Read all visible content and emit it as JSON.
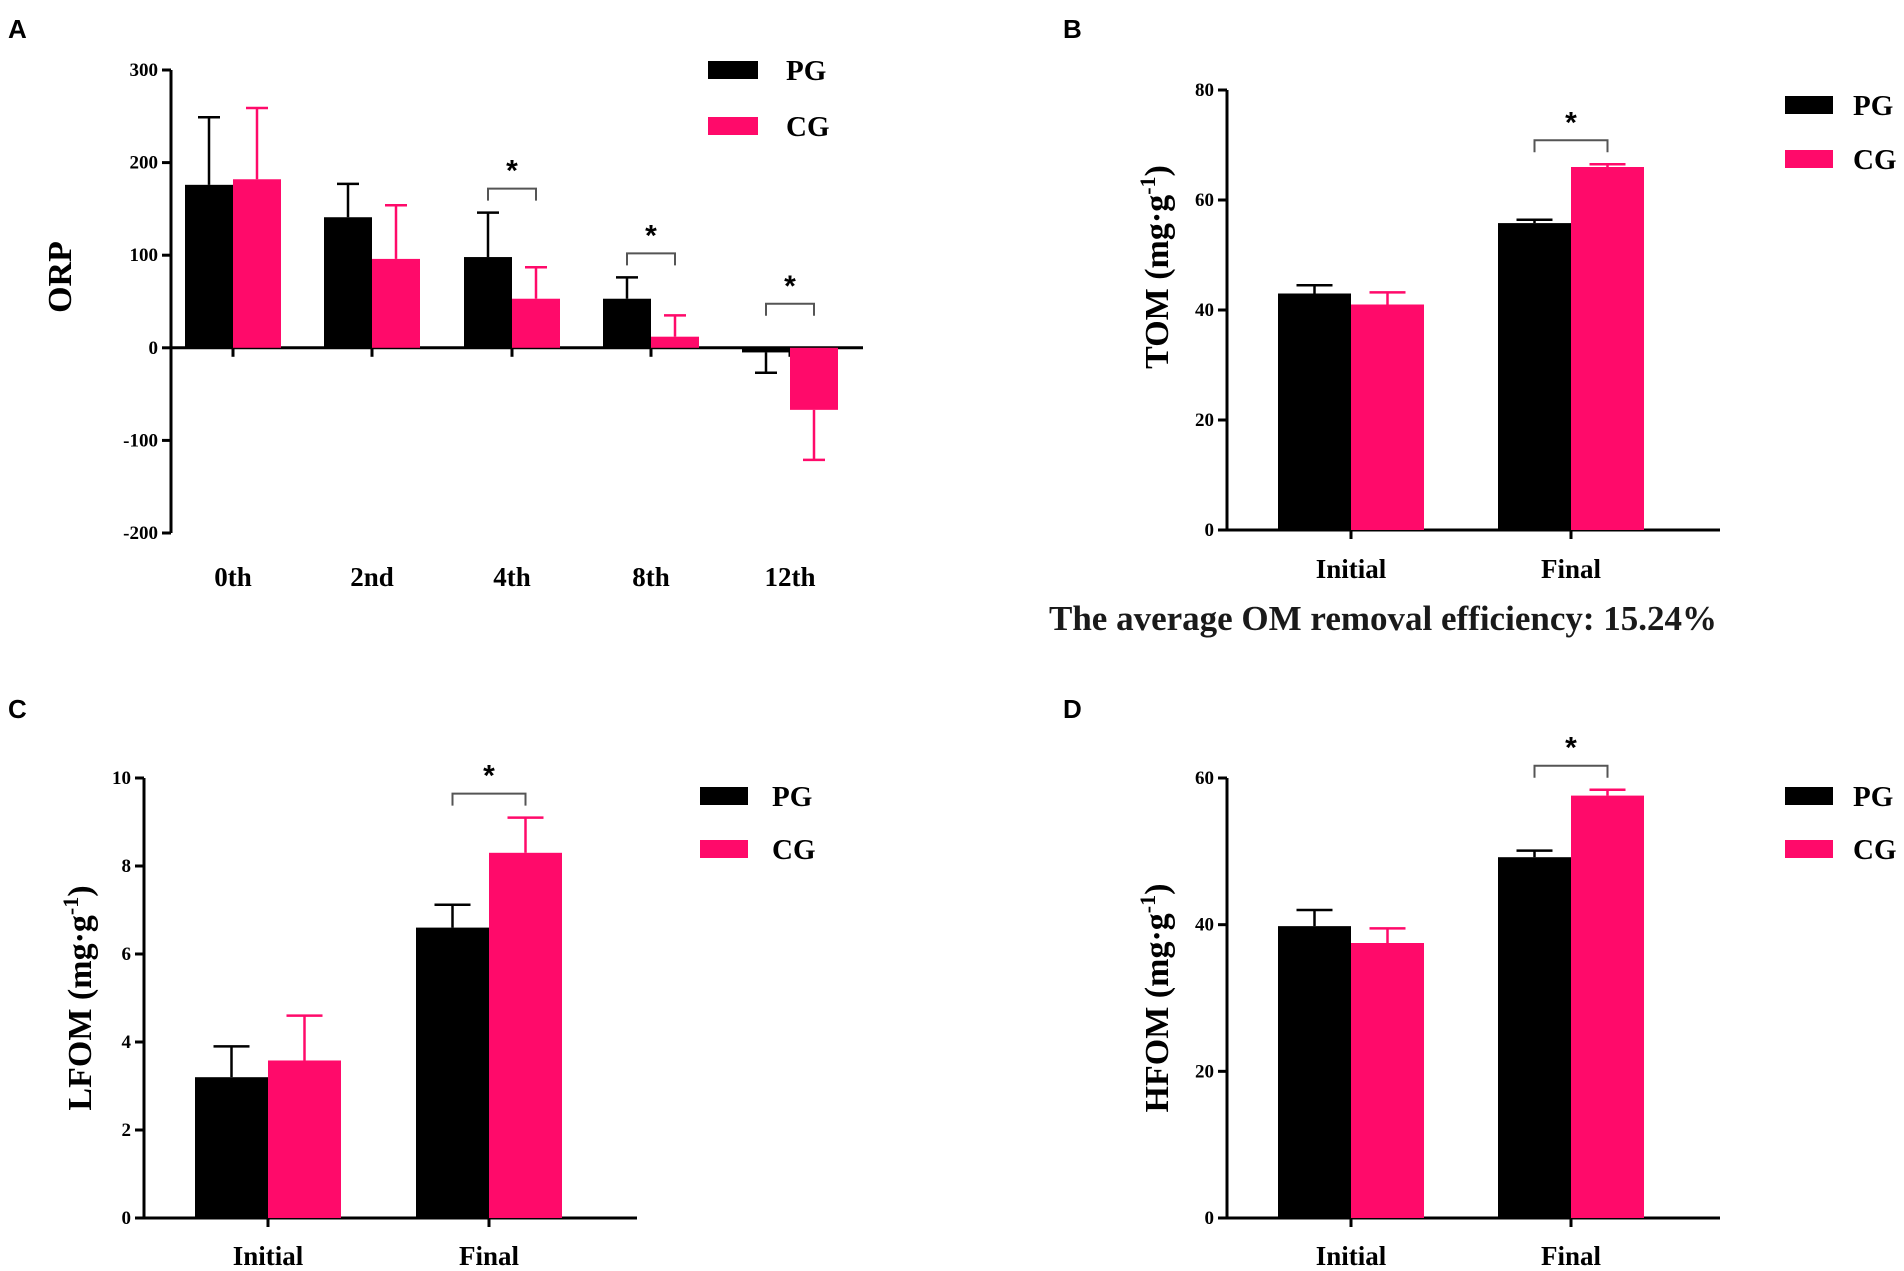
{
  "figure": {
    "caption": "The average OM removal efficiency: 15.24%"
  },
  "colors": {
    "PG": "#000000",
    "CG": "#ff0a6a",
    "axis": "#000000",
    "bracket": "#555555"
  },
  "chart_data": [
    {
      "panel": "A",
      "type": "bar",
      "title": "",
      "xlabel": "",
      "ylabel": "ORP",
      "ylim": [
        -200,
        300
      ],
      "yticks": [
        300,
        200,
        100,
        0,
        -100,
        -200
      ],
      "categories": [
        "0th",
        "2nd",
        "4th",
        "8th",
        "12th"
      ],
      "series": [
        {
          "name": "PG",
          "values": [
            176,
            141,
            98,
            53,
            -5
          ],
          "errors": [
            73,
            36,
            48,
            23,
            22
          ]
        },
        {
          "name": "CG",
          "values": [
            182,
            96,
            53,
            12,
            -67
          ],
          "errors": [
            77,
            58,
            34,
            23,
            54
          ]
        }
      ],
      "significance": [
        {
          "category": "4th",
          "label": "*"
        },
        {
          "category": "8th",
          "label": "*"
        },
        {
          "category": "12th",
          "label": "*"
        }
      ],
      "legend": [
        "PG",
        "CG"
      ]
    },
    {
      "panel": "B",
      "type": "bar",
      "title": "",
      "xlabel": "",
      "ylabel": "TOM (mg·g",
      "ylabel_sup": "-1",
      "ylabel_close": ")",
      "ylim": [
        0,
        80
      ],
      "yticks": [
        80,
        60,
        40,
        20,
        0
      ],
      "categories": [
        "Initial",
        "Final"
      ],
      "series": [
        {
          "name": "PG",
          "values": [
            43,
            55.8
          ],
          "errors": [
            1.5,
            0.6
          ]
        },
        {
          "name": "CG",
          "values": [
            41,
            66
          ],
          "errors": [
            2.2,
            0.5
          ]
        }
      ],
      "significance": [
        {
          "category": "Final",
          "label": "*"
        }
      ],
      "legend": [
        "PG",
        "CG"
      ]
    },
    {
      "panel": "C",
      "type": "bar",
      "title": "",
      "xlabel": "",
      "ylabel": "LFOM (mg·g",
      "ylabel_sup": "-1",
      "ylabel_close": ")",
      "ylim": [
        0,
        10
      ],
      "yticks": [
        10,
        8,
        6,
        4,
        2,
        0
      ],
      "categories": [
        "Initial",
        "Final"
      ],
      "series": [
        {
          "name": "PG",
          "values": [
            3.2,
            6.6
          ],
          "errors": [
            0.7,
            0.52
          ]
        },
        {
          "name": "CG",
          "values": [
            3.58,
            8.3
          ],
          "errors": [
            1.02,
            0.8
          ]
        }
      ],
      "significance": [
        {
          "category": "Final",
          "label": "*"
        }
      ],
      "legend": [
        "PG",
        "CG"
      ]
    },
    {
      "panel": "D",
      "type": "bar",
      "title": "",
      "xlabel": "",
      "ylabel": "HFOM (mg·g",
      "ylabel_sup": "-1",
      "ylabel_close": ")",
      "ylim": [
        0,
        60
      ],
      "yticks": [
        60,
        40,
        20,
        0
      ],
      "categories": [
        "Initial",
        "Final"
      ],
      "series": [
        {
          "name": "PG",
          "values": [
            39.8,
            49.2
          ],
          "errors": [
            2.2,
            0.9
          ]
        },
        {
          "name": "CG",
          "values": [
            37.5,
            57.6
          ],
          "errors": [
            2,
            0.8
          ]
        }
      ],
      "significance": [
        {
          "category": "Final",
          "label": "*"
        }
      ],
      "legend": [
        "PG",
        "CG"
      ]
    }
  ]
}
